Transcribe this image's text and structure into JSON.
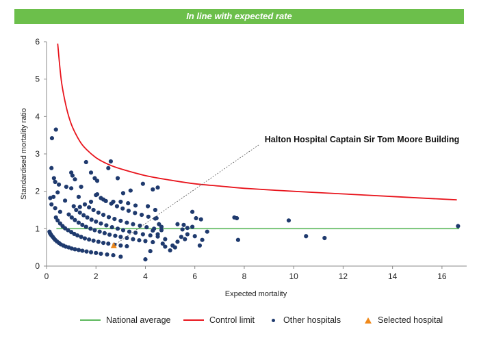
{
  "banner": {
    "title": "In line with expected rate",
    "color": "#6cbf4b"
  },
  "chart_data": {
    "type": "scatter",
    "title": "",
    "xlabel": "Expected mortality",
    "ylabel": "Standardised mortality ratio",
    "xlim": [
      0,
      17
    ],
    "ylim": [
      0,
      6
    ],
    "xticks": [
      "0",
      "2",
      "4",
      "6",
      "8",
      "10",
      "12",
      "14",
      "16"
    ],
    "yticks": [
      "0",
      "1",
      "2",
      "3",
      "4",
      "5",
      "6"
    ],
    "grid": false,
    "legend_position": "bottom",
    "annotation": {
      "text": "Halton Hospital Captain Sir Tom Moore Building",
      "x": 2.72,
      "y": 0.55
    },
    "national_average": {
      "name": "National average",
      "value": 1.0,
      "x_range": [
        0.4,
        16.7
      ],
      "color": "#5cb85c"
    },
    "control_limit": {
      "name": "Control limit",
      "color": "#e8141c",
      "x": [
        0.45,
        0.6,
        0.8,
        1.0,
        1.25,
        1.5,
        2.0,
        2.5,
        3.0,
        4.0,
        5.0,
        6.0,
        7.0,
        8.0,
        10.0,
        12.0,
        14.0,
        16.6
      ],
      "y": [
        5.95,
        4.95,
        4.25,
        3.8,
        3.45,
        3.2,
        2.9,
        2.72,
        2.6,
        2.42,
        2.3,
        2.2,
        2.14,
        2.08,
        2.0,
        1.93,
        1.86,
        1.77
      ]
    },
    "series": [
      {
        "name": "Other hospitals",
        "color": "#1f3a6e",
        "points": [
          [
            0.38,
            3.65
          ],
          [
            0.22,
            3.42
          ],
          [
            0.2,
            2.62
          ],
          [
            0.3,
            2.35
          ],
          [
            0.35,
            2.25
          ],
          [
            0.5,
            2.18
          ],
          [
            0.45,
            1.97
          ],
          [
            0.28,
            1.85
          ],
          [
            0.2,
            1.65
          ],
          [
            0.35,
            1.55
          ],
          [
            0.15,
            1.82
          ],
          [
            0.8,
            2.12
          ],
          [
            1.0,
            2.5
          ],
          [
            1.05,
            2.42
          ],
          [
            1.15,
            2.32
          ],
          [
            1.0,
            2.08
          ],
          [
            1.4,
            2.12
          ],
          [
            1.3,
            1.85
          ],
          [
            1.6,
            2.78
          ],
          [
            1.8,
            2.5
          ],
          [
            1.95,
            2.35
          ],
          [
            2.05,
            2.28
          ],
          [
            2.5,
            2.62
          ],
          [
            2.6,
            2.8
          ],
          [
            2.88,
            2.35
          ],
          [
            3.1,
            1.95
          ],
          [
            3.4,
            2.02
          ],
          [
            3.9,
            2.2
          ],
          [
            4.3,
            2.05
          ],
          [
            4.5,
            2.1
          ],
          [
            0.55,
            1.45
          ],
          [
            0.75,
            1.75
          ],
          [
            1.1,
            1.6
          ],
          [
            1.35,
            1.58
          ],
          [
            1.8,
            1.72
          ],
          [
            2.05,
            1.92
          ],
          [
            2.3,
            1.78
          ],
          [
            2.7,
            1.72
          ],
          [
            3.0,
            1.72
          ],
          [
            3.3,
            1.68
          ],
          [
            3.6,
            1.62
          ],
          [
            4.1,
            1.6
          ],
          [
            4.4,
            1.5
          ],
          [
            4.45,
            1.28
          ],
          [
            4.55,
            1.12
          ],
          [
            4.65,
            1.05
          ],
          [
            4.3,
            0.95
          ],
          [
            4.5,
            0.85
          ],
          [
            4.8,
            0.72
          ],
          [
            4.7,
            0.6
          ],
          [
            4.8,
            0.52
          ],
          [
            5.0,
            0.42
          ],
          [
            5.2,
            0.5
          ],
          [
            5.3,
            0.65
          ],
          [
            5.45,
            0.78
          ],
          [
            5.6,
            0.72
          ],
          [
            5.7,
            0.85
          ],
          [
            5.5,
            0.98
          ],
          [
            5.7,
            1.02
          ],
          [
            5.9,
            1.05
          ],
          [
            5.3,
            1.12
          ],
          [
            5.55,
            1.1
          ],
          [
            5.9,
            1.45
          ],
          [
            6.05,
            1.28
          ],
          [
            6.25,
            1.25
          ],
          [
            6.0,
            0.8
          ],
          [
            6.3,
            0.7
          ],
          [
            6.5,
            0.92
          ],
          [
            6.2,
            0.55
          ],
          [
            5.1,
            0.55
          ],
          [
            4.0,
            0.18
          ],
          [
            3.0,
            0.25
          ],
          [
            4.2,
            0.4
          ],
          [
            7.6,
            1.3
          ],
          [
            7.7,
            1.28
          ],
          [
            7.75,
            0.7
          ],
          [
            9.8,
            1.22
          ],
          [
            10.5,
            0.8
          ],
          [
            11.25,
            0.75
          ],
          [
            16.65,
            1.07
          ],
          [
            0.12,
            0.92
          ],
          [
            0.14,
            0.88
          ],
          [
            0.17,
            0.85
          ],
          [
            0.2,
            0.82
          ],
          [
            0.25,
            0.78
          ],
          [
            0.3,
            0.74
          ],
          [
            0.35,
            0.7
          ],
          [
            0.42,
            0.66
          ],
          [
            0.5,
            0.62
          ],
          [
            0.58,
            0.58
          ],
          [
            0.68,
            0.55
          ],
          [
            0.78,
            0.52
          ],
          [
            0.9,
            0.5
          ],
          [
            1.02,
            0.47
          ],
          [
            1.15,
            0.45
          ],
          [
            1.3,
            0.43
          ],
          [
            1.45,
            0.41
          ],
          [
            1.62,
            0.39
          ],
          [
            1.8,
            0.37
          ],
          [
            2.0,
            0.35
          ],
          [
            2.2,
            0.33
          ],
          [
            2.45,
            0.31
          ],
          [
            2.7,
            0.29
          ],
          [
            0.38,
            1.3
          ],
          [
            0.45,
            1.22
          ],
          [
            0.55,
            1.14
          ],
          [
            0.65,
            1.07
          ],
          [
            0.75,
            1.01
          ],
          [
            0.87,
            0.96
          ],
          [
            1.0,
            0.91
          ],
          [
            1.12,
            0.86
          ],
          [
            1.25,
            0.82
          ],
          [
            1.4,
            0.78
          ],
          [
            1.55,
            0.74
          ],
          [
            1.72,
            0.71
          ],
          [
            1.9,
            0.68
          ],
          [
            2.1,
            0.65
          ],
          [
            2.3,
            0.62
          ],
          [
            2.5,
            0.6
          ],
          [
            2.75,
            0.57
          ],
          [
            3.0,
            0.55
          ],
          [
            3.25,
            0.53
          ],
          [
            0.9,
            1.38
          ],
          [
            1.02,
            1.3
          ],
          [
            1.15,
            1.23
          ],
          [
            1.3,
            1.16
          ],
          [
            1.45,
            1.1
          ],
          [
            1.6,
            1.05
          ],
          [
            1.78,
            1.0
          ],
          [
            1.95,
            0.96
          ],
          [
            2.15,
            0.92
          ],
          [
            2.35,
            0.88
          ],
          [
            2.55,
            0.84
          ],
          [
            2.78,
            0.81
          ],
          [
            3.0,
            0.78
          ],
          [
            3.25,
            0.75
          ],
          [
            3.5,
            0.72
          ],
          [
            3.75,
            0.69
          ],
          [
            4.0,
            0.67
          ],
          [
            4.3,
            0.64
          ],
          [
            1.2,
            1.5
          ],
          [
            1.35,
            1.43
          ],
          [
            1.5,
            1.36
          ],
          [
            1.65,
            1.3
          ],
          [
            1.82,
            1.24
          ],
          [
            2.0,
            1.19
          ],
          [
            2.2,
            1.14
          ],
          [
            2.42,
            1.09
          ],
          [
            2.65,
            1.04
          ],
          [
            2.88,
            1.0
          ],
          [
            3.1,
            0.96
          ],
          [
            3.35,
            0.92
          ],
          [
            3.6,
            0.89
          ],
          [
            3.9,
            0.85
          ],
          [
            4.2,
            0.82
          ],
          [
            4.5,
            0.79
          ],
          [
            1.55,
            1.65
          ],
          [
            1.72,
            1.57
          ],
          [
            1.9,
            1.5
          ],
          [
            2.1,
            1.43
          ],
          [
            2.3,
            1.37
          ],
          [
            2.52,
            1.31
          ],
          [
            2.75,
            1.26
          ],
          [
            3.0,
            1.21
          ],
          [
            3.25,
            1.16
          ],
          [
            3.5,
            1.12
          ],
          [
            3.78,
            1.08
          ],
          [
            4.05,
            1.04
          ],
          [
            4.35,
            1.0
          ],
          [
            4.65,
            0.96
          ],
          [
            2.0,
            1.9
          ],
          [
            2.2,
            1.82
          ],
          [
            2.4,
            1.74
          ],
          [
            2.62,
            1.67
          ],
          [
            2.85,
            1.6
          ],
          [
            3.08,
            1.54
          ],
          [
            3.32,
            1.48
          ],
          [
            3.58,
            1.42
          ],
          [
            3.85,
            1.37
          ],
          [
            4.12,
            1.32
          ],
          [
            4.4,
            1.27
          ]
        ]
      },
      {
        "name": "Selected hospital",
        "color": "#f0891a",
        "points": [
          [
            2.72,
            0.55
          ]
        ]
      }
    ]
  }
}
